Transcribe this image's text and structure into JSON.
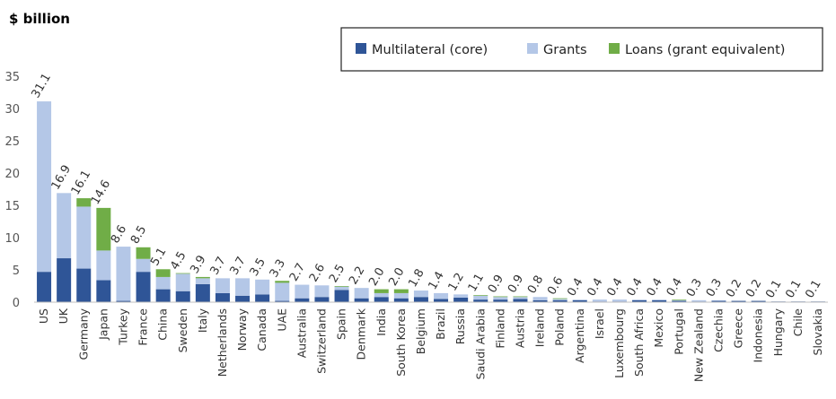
{
  "chart_data": {
    "type": "bar",
    "stacked": true,
    "unit_label": "$ billion",
    "title": "",
    "xlabel": "",
    "ylabel": "",
    "ylim": [
      0,
      35
    ],
    "yticks": [
      0,
      5,
      10,
      15,
      20,
      25,
      30,
      35
    ],
    "grid": false,
    "legend_position": "top-right",
    "categories": [
      "US",
      "UK",
      "Germany",
      "Japan",
      "Turkey",
      "France",
      "China",
      "Sweden",
      "Italy",
      "Netherlands",
      "Norway",
      "Canada",
      "UAE",
      "Australia",
      "Switzerland",
      "Spain",
      "Denmark",
      "India",
      "South Korea",
      "Belgium",
      "Brazil",
      "Russia",
      "Saudi Arabia",
      "Finland",
      "Austria",
      "Ireland",
      "Poland",
      "Argentina",
      "Israel",
      "Luxembourg",
      "South Africa",
      "Mexico",
      "Portugal",
      "New Zealand",
      "Czechia",
      "Greece",
      "Indonesia",
      "Hungary",
      "Chile",
      "Slovakia"
    ],
    "series": [
      {
        "name": "Multilateral (core)",
        "color": "#2f5597",
        "values": [
          4.7,
          6.8,
          5.2,
          3.4,
          0.2,
          4.7,
          2.0,
          1.7,
          2.8,
          1.4,
          1.0,
          1.2,
          0.2,
          0.6,
          0.8,
          1.9,
          0.6,
          0.8,
          0.6,
          0.8,
          0.5,
          0.7,
          0.4,
          0.4,
          0.5,
          0.3,
          0.3,
          0.3,
          0.1,
          0.1,
          0.3,
          0.3,
          0.2,
          0.1,
          0.2,
          0.2,
          0.2,
          0.1,
          0.1,
          0.1
        ]
      },
      {
        "name": "Grants",
        "color": "#b4c7e7",
        "values": [
          26.4,
          10.1,
          9.6,
          4.6,
          8.4,
          2.0,
          1.9,
          2.7,
          0.9,
          2.3,
          2.7,
          2.3,
          2.8,
          2.1,
          1.8,
          0.5,
          1.6,
          0.6,
          0.8,
          1.0,
          0.9,
          0.5,
          0.6,
          0.4,
          0.3,
          0.5,
          0.2,
          0.1,
          0.3,
          0.3,
          0.1,
          0.1,
          0.1,
          0.2,
          0.1,
          0.0,
          0.0,
          0.0,
          0.0,
          0.0
        ]
      },
      {
        "name": "Loans (grant equivalent)",
        "color": "#70ad47",
        "values": [
          0.0,
          0.0,
          1.3,
          6.6,
          0.0,
          1.8,
          1.2,
          0.1,
          0.2,
          0.0,
          0.0,
          0.0,
          0.3,
          0.0,
          0.0,
          0.1,
          0.0,
          0.6,
          0.6,
          0.0,
          0.0,
          0.0,
          0.1,
          0.1,
          0.1,
          0.0,
          0.1,
          0.0,
          0.0,
          0.0,
          0.0,
          0.0,
          0.1,
          0.0,
          0.0,
          0.0,
          0.0,
          0.0,
          0.0,
          0.0
        ]
      }
    ],
    "totals": [
      "31.1",
      "16.9",
      "16.1",
      "14.6",
      "8.6",
      "8.5",
      "5.1",
      "4.5",
      "3.9",
      "3.7",
      "3.7",
      "3.5",
      "3.3",
      "2.7",
      "2.6",
      "2.5",
      "2.2",
      "2.0",
      "2.0",
      "1.8",
      "1.4",
      "1.2",
      "1.1",
      "0.9",
      "0.9",
      "0.8",
      "0.6",
      "0.4",
      "0.4",
      "0.4",
      "0.4",
      "0.4",
      "0.4",
      "0.3",
      "0.3",
      "0.2",
      "0.2",
      "0.1",
      "0.1",
      "0.1"
    ]
  }
}
